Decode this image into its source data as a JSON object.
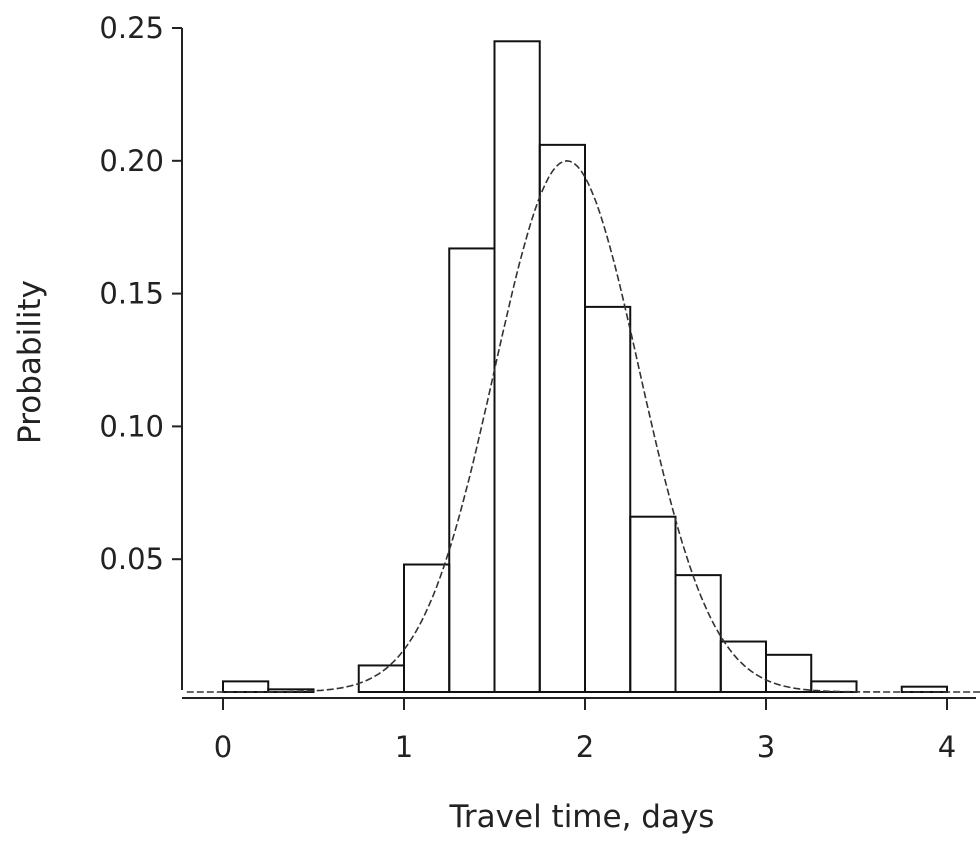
{
  "chart_data": {
    "type": "bar",
    "title": "",
    "xlabel": "Travel time, days",
    "ylabel": "Probability",
    "xlim": [
      -0.2,
      4.2
    ],
    "ylim": [
      0,
      0.25
    ],
    "x_ticks": [
      0,
      1,
      2,
      3,
      4
    ],
    "x_tick_labels": [
      "0",
      "1",
      "2",
      "3",
      "4"
    ],
    "y_ticks": [
      0.05,
      0.1,
      0.15,
      0.2,
      0.25
    ],
    "y_tick_labels": [
      "0.05",
      "0.10",
      "0.15",
      "0.20",
      "0.25"
    ],
    "grid": false,
    "legend": "none",
    "histogram": {
      "bin_width": 0.25,
      "bin_starts": [
        0,
        0.25,
        0.5,
        0.75,
        1.0,
        1.25,
        1.5,
        1.75,
        2.0,
        2.25,
        2.5,
        2.75,
        3.0,
        3.25,
        3.5,
        3.75
      ],
      "values": [
        0.004,
        0.001,
        0.0,
        0.01,
        0.048,
        0.167,
        0.245,
        0.206,
        0.145,
        0.066,
        0.044,
        0.019,
        0.014,
        0.004,
        0.0,
        0.002
      ]
    },
    "fitted_curve": {
      "style": "dashed",
      "distribution": "normal",
      "mean": 1.9,
      "sd": 0.4,
      "peak": 0.2
    }
  }
}
